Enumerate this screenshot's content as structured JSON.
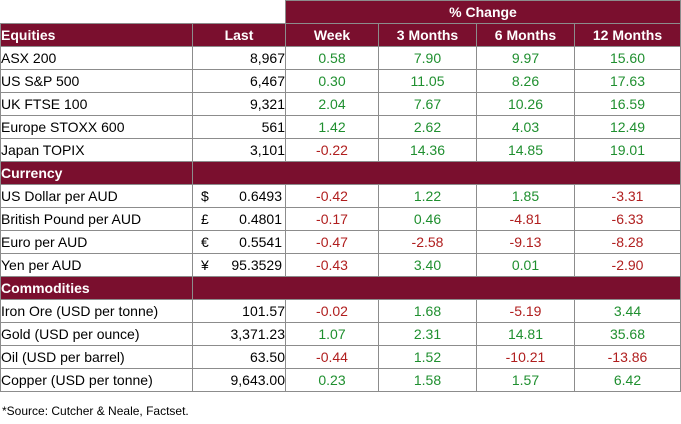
{
  "header": {
    "pct_change": "% Change",
    "columns": [
      "Last",
      "Week",
      "3 Months",
      "6 Months",
      "12 Months"
    ]
  },
  "sections": [
    {
      "title": "Equities",
      "rows": [
        {
          "name": "ASX 200",
          "last": "8,967",
          "week": "0.58",
          "m3": "7.90",
          "m6": "9.97",
          "m12": "15.60"
        },
        {
          "name": "US S&P 500",
          "last": "6,467",
          "week": "0.30",
          "m3": "11.05",
          "m6": "8.26",
          "m12": "17.63"
        },
        {
          "name": "UK FTSE 100",
          "last": "9,321",
          "week": "2.04",
          "m3": "7.67",
          "m6": "10.26",
          "m12": "16.59"
        },
        {
          "name": "Europe STOXX 600",
          "last": "561",
          "week": "1.42",
          "m3": "2.62",
          "m6": "4.03",
          "m12": "12.49"
        },
        {
          "name": "Japan TOPIX",
          "last": "3,101",
          "week": "-0.22",
          "m3": "14.36",
          "m6": "14.85",
          "m12": "19.01"
        }
      ]
    },
    {
      "title": "Currency",
      "rows": [
        {
          "name": "US Dollar per AUD",
          "sym": "$",
          "last": "0.6493",
          "week": "-0.42",
          "m3": "1.22",
          "m6": "1.85",
          "m12": "-3.31"
        },
        {
          "name": "British Pound per AUD",
          "sym": "£",
          "last": "0.4801",
          "week": "-0.17",
          "m3": "0.46",
          "m6": "-4.81",
          "m12": "-6.33"
        },
        {
          "name": "Euro per AUD",
          "sym": "€",
          "last": "0.5541",
          "week": "-0.47",
          "m3": "-2.58",
          "m6": "-9.13",
          "m12": "-8.28"
        },
        {
          "name": "Yen per AUD",
          "sym": "¥",
          "last": "95.3529",
          "week": "-0.43",
          "m3": "3.40",
          "m6": "0.01",
          "m12": "-2.90"
        }
      ]
    },
    {
      "title": "Commodities",
      "rows": [
        {
          "name": "Iron Ore (USD per tonne)",
          "last": "101.57",
          "week": "-0.02",
          "m3": "1.68",
          "m6": "-5.19",
          "m12": "3.44"
        },
        {
          "name": "Gold (USD per ounce)",
          "last": "3,371.23",
          "week": "1.07",
          "m3": "2.31",
          "m6": "14.81",
          "m12": "35.68"
        },
        {
          "name": "Oil (USD per barrel)",
          "last": "63.50",
          "week": "-0.44",
          "m3": "1.52",
          "m6": "-10.21",
          "m12": "-13.86"
        },
        {
          "name": "Copper (USD per tonne)",
          "last": "9,643.00",
          "week": "0.23",
          "m3": "1.58",
          "m6": "1.57",
          "m12": "6.42"
        }
      ]
    }
  ],
  "footnote": "*Source: Cutcher & Neale, Factset.",
  "colors": {
    "header_bg": "#7a0f2e",
    "positive": "#1f8f2f",
    "negative": "#b01e1e",
    "border": "#8c8c8c"
  }
}
